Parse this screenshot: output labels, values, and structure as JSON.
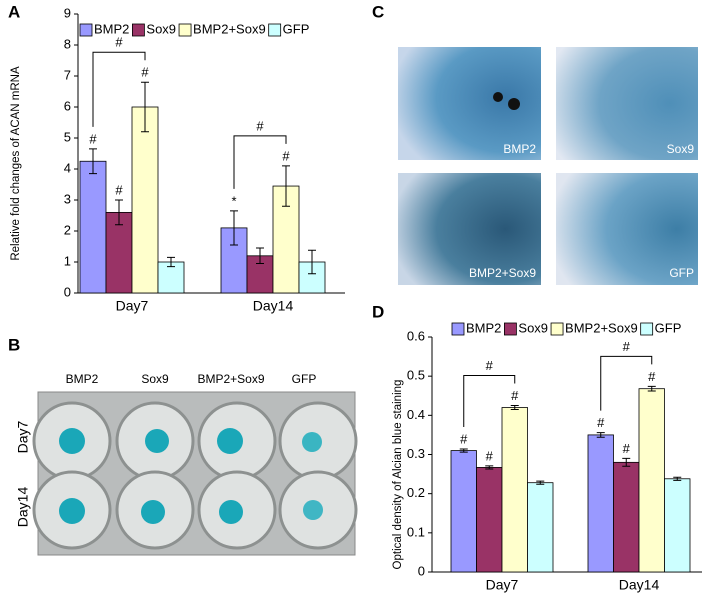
{
  "panels": {
    "a": "A",
    "b": "B",
    "c": "C",
    "d": "D"
  },
  "plate": {
    "columns": [
      "BMP2",
      "Sox9",
      "BMP2+Sox9",
      "GFP"
    ],
    "rows": [
      "Day7",
      "Day14"
    ]
  },
  "micrographs": [
    "BMP2",
    "Sox9",
    "BMP2+Sox9",
    "GFP"
  ],
  "chart_data": [
    {
      "type": "bar",
      "y_label": "Relative fold changes of ACAN mRNA",
      "categories": [
        "Day7",
        "Day14"
      ],
      "series": [
        {
          "name": "BMP2",
          "color": "#9999ff",
          "values": [
            4.25,
            2.1
          ],
          "errors": [
            0.4,
            0.55
          ],
          "marks": [
            "#",
            "*"
          ]
        },
        {
          "name": "Sox9",
          "color": "#993366",
          "values": [
            2.6,
            1.2
          ],
          "errors": [
            0.4,
            0.25
          ],
          "marks": [
            "#"
          ]
        },
        {
          "name": "BMP2+Sox9",
          "color": "#ffffcc",
          "values": [
            6.0,
            3.45
          ],
          "errors": [
            0.8,
            0.65
          ],
          "marks": [
            "#",
            "#"
          ]
        },
        {
          "name": "GFP",
          "color": "#ccffff",
          "values": [
            1.0,
            1.0
          ],
          "errors": [
            0.15,
            0.38
          ]
        }
      ],
      "bracket_labels": [
        "#",
        "#"
      ],
      "ylim": [
        0,
        9
      ],
      "yticks": [
        0,
        1,
        2,
        3,
        4,
        5,
        6,
        7,
        8,
        9
      ],
      "legend": "top"
    },
    {
      "type": "bar",
      "y_label": "Optical density of Alcian blue staining",
      "categories": [
        "Day7",
        "Day14"
      ],
      "series": [
        {
          "name": "BMP2",
          "color": "#9999ff",
          "values": [
            0.31,
            0.35
          ],
          "errors": [
            0.004,
            0.006
          ],
          "marks": [
            "#",
            "#"
          ]
        },
        {
          "name": "Sox9",
          "color": "#993366",
          "values": [
            0.267,
            0.28
          ],
          "errors": [
            0.004,
            0.01
          ],
          "marks": [
            "#",
            "#"
          ]
        },
        {
          "name": "BMP2+Sox9",
          "color": "#ffffcc",
          "values": [
            0.42,
            0.468
          ],
          "errors": [
            0.005,
            0.006
          ],
          "marks": [
            "#",
            "#"
          ]
        },
        {
          "name": "GFP",
          "color": "#ccffff",
          "values": [
            0.228,
            0.238
          ],
          "errors": [
            0.004,
            0.004
          ]
        }
      ],
      "bracket_labels": [
        "#",
        "#"
      ],
      "ylim": [
        0,
        0.6
      ],
      "yticks": [
        0,
        0.1,
        0.2,
        0.3,
        0.4,
        0.5,
        0.6
      ],
      "legend": "top"
    }
  ]
}
